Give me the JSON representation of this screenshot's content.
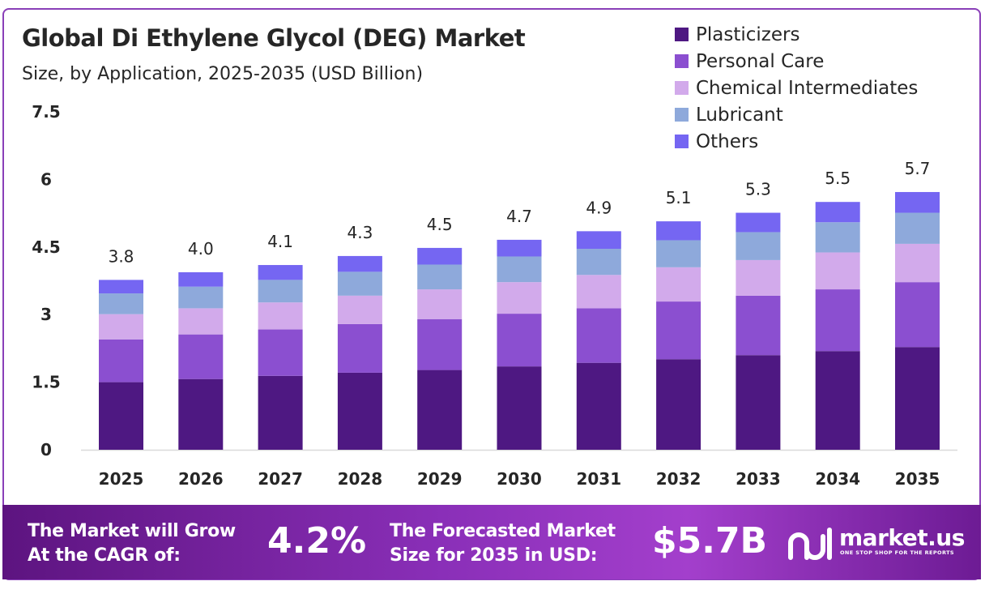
{
  "title": "Global Di Ethylene Glycol (DEG) Market",
  "subtitle": "Size, by Application, 2025-2035 (USD Billion)",
  "chart_data": {
    "type": "bar",
    "stacked": true,
    "categories": [
      "2025",
      "2026",
      "2027",
      "2028",
      "2029",
      "2030",
      "2031",
      "2032",
      "2033",
      "2034",
      "2035"
    ],
    "series": [
      {
        "name": "Plasticizers",
        "color": "#4e1882",
        "values": [
          1.5,
          1.57,
          1.64,
          1.71,
          1.77,
          1.85,
          1.93,
          2.01,
          2.1,
          2.19,
          2.28
        ]
      },
      {
        "name": "Personal Care",
        "color": "#8b4fd0",
        "values": [
          0.95,
          0.99,
          1.03,
          1.08,
          1.13,
          1.17,
          1.21,
          1.28,
          1.32,
          1.37,
          1.44
        ]
      },
      {
        "name": "Chemical Intermediates",
        "color": "#d2aaeb",
        "values": [
          0.56,
          0.58,
          0.6,
          0.63,
          0.66,
          0.7,
          0.74,
          0.76,
          0.79,
          0.82,
          0.85
        ]
      },
      {
        "name": "Lubricant",
        "color": "#8ea9db",
        "values": [
          0.46,
          0.48,
          0.5,
          0.53,
          0.55,
          0.57,
          0.58,
          0.6,
          0.62,
          0.67,
          0.69
        ]
      },
      {
        "name": "Others",
        "color": "#7566f2",
        "values": [
          0.3,
          0.32,
          0.33,
          0.35,
          0.37,
          0.37,
          0.39,
          0.42,
          0.43,
          0.45,
          0.46
        ]
      }
    ],
    "totals": [
      "3.8",
      "4.0",
      "4.1",
      "4.3",
      "4.5",
      "4.7",
      "4.9",
      "5.1",
      "5.3",
      "5.5",
      "5.7"
    ],
    "totals_values": [
      3.8,
      4.0,
      4.1,
      4.3,
      4.5,
      4.7,
      4.9,
      5.1,
      5.3,
      5.5,
      5.7
    ],
    "yticks": [
      "0",
      "1.5",
      "3",
      "4.5",
      "6",
      "7.5"
    ],
    "ytick_values": [
      0,
      1.5,
      3,
      4.5,
      6,
      7.5
    ],
    "ylim": [
      0,
      7.5
    ],
    "grid": false,
    "legend_position": "top-right"
  },
  "banner": {
    "cagr_label_line1": "The Market will Grow",
    "cagr_label_line2": "At the CAGR of:",
    "cagr_value": "4.2%",
    "forecast_label_line1": "The Forecasted Market",
    "forecast_label_line2": "Size for 2035 in USD:",
    "forecast_value": "$5.7B",
    "brand_name": "market.us",
    "brand_tagline": "ONE STOP SHOP FOR THE REPORTS"
  },
  "icons": {
    "brand": "market-us-logo-icon"
  }
}
